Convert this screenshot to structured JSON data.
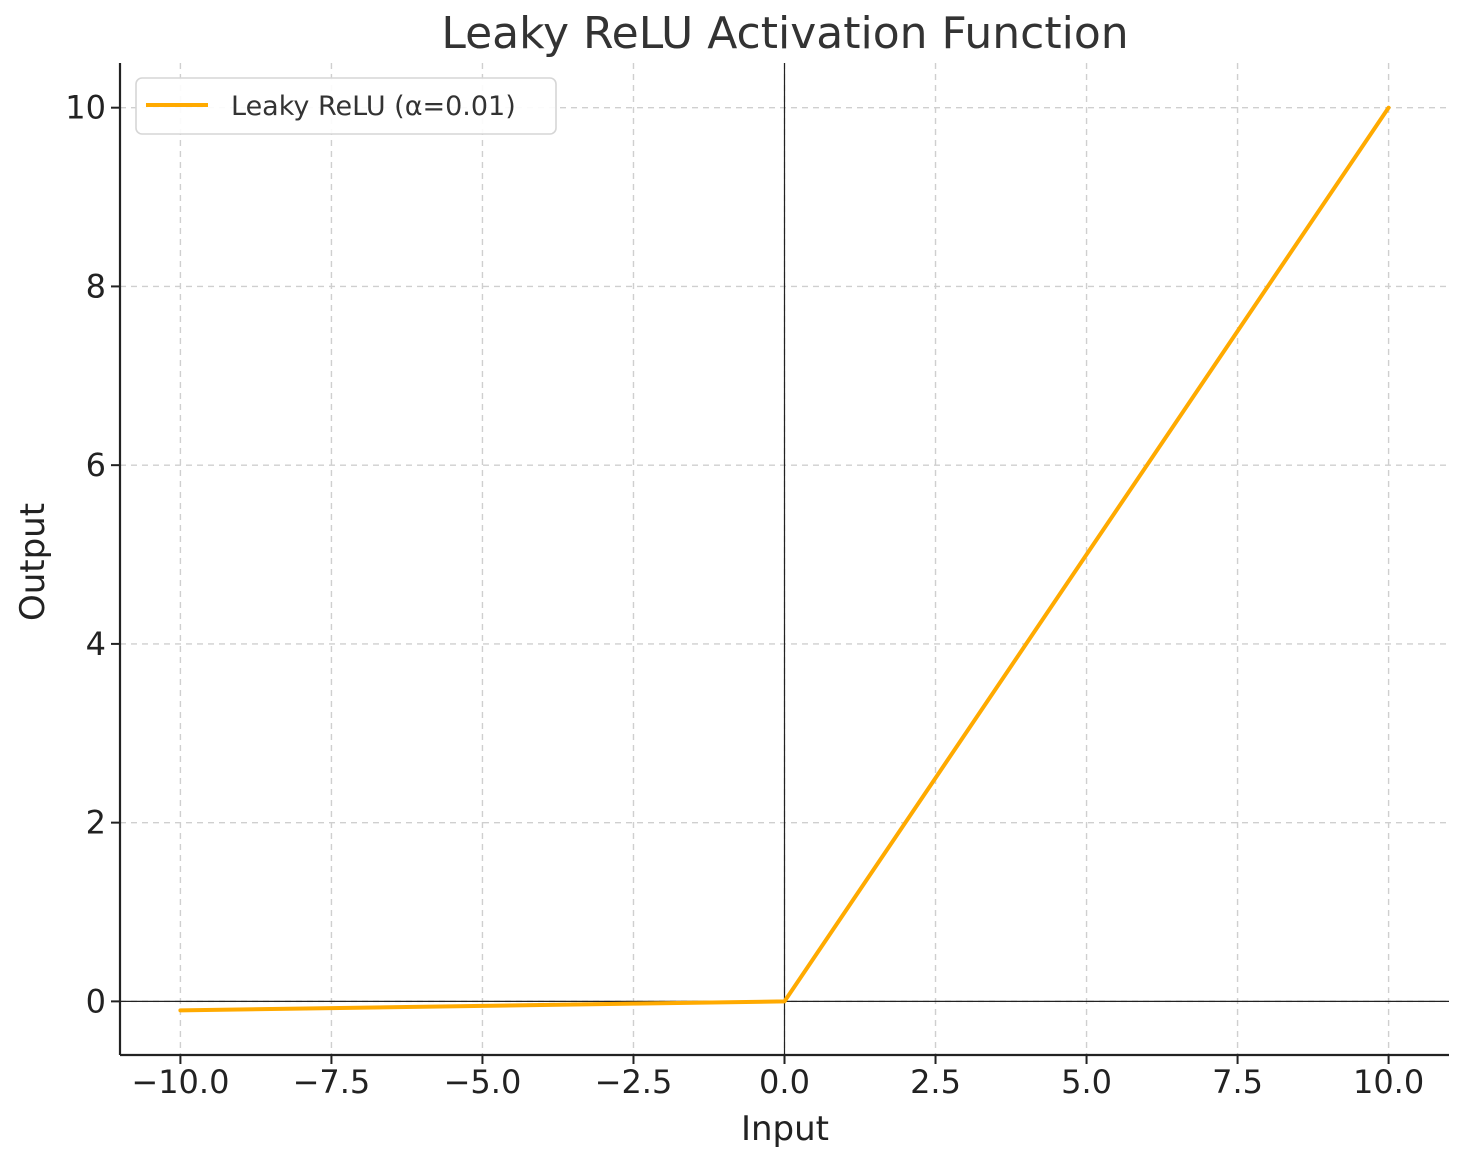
{
  "chart_data": {
    "type": "line",
    "title": "Leaky ReLU Activation Function",
    "xlabel": "Input",
    "ylabel": "Output",
    "xlim": [
      -11,
      11
    ],
    "ylim": [
      -0.6,
      10.5
    ],
    "xticks": [
      -10,
      -7.5,
      -5,
      -2.5,
      0,
      2.5,
      5,
      7.5,
      10
    ],
    "xtick_labels": [
      "−10.0",
      "−7.5",
      "−5.0",
      "−2.5",
      "0.0",
      "2.5",
      "5.0",
      "7.5",
      "10.0"
    ],
    "yticks": [
      0,
      2,
      4,
      6,
      8,
      10
    ],
    "ytick_labels": [
      "0",
      "2",
      "4",
      "6",
      "8",
      "10"
    ],
    "grid": true,
    "reference_lines": {
      "x": 0,
      "y": 0
    },
    "legend": {
      "placement": "top-left"
    },
    "series": [
      {
        "name": "Leaky ReLU (α=0.01)",
        "color": "#FFAA00",
        "x": [
          -10,
          -7.5,
          -5,
          -2.5,
          0,
          2.5,
          5,
          7.5,
          10
        ],
        "y": [
          -0.1,
          -0.075,
          -0.05,
          -0.025,
          0,
          2.5,
          5,
          7.5,
          10
        ]
      }
    ]
  }
}
